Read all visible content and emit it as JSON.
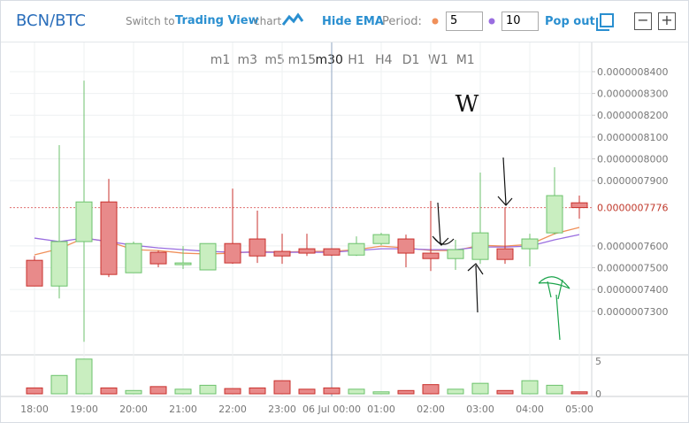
{
  "header": {
    "pair": "BCN/BTC",
    "switch_prefix": "Switch to",
    "switch_brand": "Trading View",
    "switch_suffix": "chart",
    "ema_toggle": "Hide EMA",
    "period_label": "Period:",
    "period_fast": "5",
    "period_slow": "10",
    "pop_out": "Pop out",
    "minus": "−",
    "plus": "+"
  },
  "timeframes": [
    "m1",
    "m3",
    "m5",
    "m15",
    "m30",
    "H1",
    "H4",
    "D1",
    "W1",
    "M1"
  ],
  "chart_data": {
    "type": "candlestick",
    "annotations": [
      "W"
    ],
    "categories": [
      "18:00",
      null,
      "19:00",
      null,
      "20:00",
      null,
      "21:00",
      null,
      "22:00",
      null,
      "23:00",
      null,
      "06 Jul 00:00",
      null,
      "01:00",
      null,
      "02:00",
      null,
      "03:00",
      null,
      "04:00",
      null,
      "05:00"
    ],
    "open": [
      7.534e-07,
      7.416e-07,
      7.62e-07,
      7.802e-07,
      7.477e-07,
      7.571e-07,
      7.514e-07,
      7.49e-07,
      7.611e-07,
      7.632e-07,
      7.575e-07,
      7.587e-07,
      7.587e-07,
      7.558e-07,
      7.611e-07,
      7.632e-07,
      7.567e-07,
      7.542e-07,
      7.538e-07,
      7.587e-07,
      7.587e-07,
      7.66e-07,
      7.798e-07
    ],
    "high": [
      7.554e-07,
      8.063e-07,
      8.359e-07,
      7.908e-07,
      7.62e-07,
      7.579e-07,
      7.599e-07,
      7.611e-07,
      7.863e-07,
      7.762e-07,
      7.656e-07,
      7.656e-07,
      7.587e-07,
      7.644e-07,
      7.66e-07,
      7.652e-07,
      7.807e-07,
      7.628e-07,
      7.937e-07,
      7.778e-07,
      7.656e-07,
      7.961e-07,
      7.831e-07
    ],
    "low": [
      7.416e-07,
      7.359e-07,
      7.16e-07,
      7.457e-07,
      7.477e-07,
      7.502e-07,
      7.494e-07,
      7.49e-07,
      7.518e-07,
      7.522e-07,
      7.518e-07,
      7.554e-07,
      7.554e-07,
      7.554e-07,
      7.603e-07,
      7.502e-07,
      7.485e-07,
      7.49e-07,
      7.518e-07,
      7.518e-07,
      7.506e-07,
      7.652e-07,
      7.725e-07
    ],
    "close": [
      7.416e-07,
      7.62e-07,
      7.802e-07,
      7.469e-07,
      7.611e-07,
      7.518e-07,
      7.522e-07,
      7.611e-07,
      7.522e-07,
      7.554e-07,
      7.554e-07,
      7.567e-07,
      7.558e-07,
      7.611e-07,
      7.652e-07,
      7.567e-07,
      7.542e-07,
      7.583e-07,
      7.66e-07,
      7.538e-07,
      7.632e-07,
      7.831e-07,
      7.776e-07
    ],
    "series": [
      {
        "name": "EMA 5",
        "color": "#f0905a",
        "values": [
          7.559e-07,
          7.587e-07,
          7.636e-07,
          7.62e-07,
          7.583e-07,
          7.579e-07,
          7.567e-07,
          7.563e-07,
          7.567e-07,
          7.575e-07,
          7.571e-07,
          7.575e-07,
          7.575e-07,
          7.583e-07,
          7.599e-07,
          7.591e-07,
          7.579e-07,
          7.579e-07,
          7.603e-07,
          7.599e-07,
          7.607e-07,
          7.656e-07,
          7.685e-07
        ]
      },
      {
        "name": "EMA 10",
        "color": "#9a6ee0",
        "values": [
          7.636e-07,
          7.62e-07,
          7.636e-07,
          7.62e-07,
          7.603e-07,
          7.591e-07,
          7.583e-07,
          7.575e-07,
          7.571e-07,
          7.571e-07,
          7.571e-07,
          7.571e-07,
          7.571e-07,
          7.579e-07,
          7.587e-07,
          7.587e-07,
          7.583e-07,
          7.583e-07,
          7.595e-07,
          7.595e-07,
          7.599e-07,
          7.628e-07,
          7.652e-07
        ]
      }
    ],
    "volume": [
      0.9,
      2.8,
      5.3,
      0.9,
      0.5,
      1.1,
      0.7,
      1.3,
      0.8,
      0.9,
      2.0,
      0.7,
      0.9,
      0.7,
      0.3,
      0.5,
      1.4,
      0.7,
      1.6,
      0.5,
      2.0,
      1.3,
      0.3
    ],
    "volume_ylim": [
      0,
      5
    ],
    "volume_ticks": [
      0,
      5
    ],
    "ylim": [
      7.1e-07,
      8.534e-07
    ],
    "yticks": [
      {
        "value": 7.3e-07,
        "label": "0.0000007300"
      },
      {
        "value": 7.4e-07,
        "label": "0.0000007400"
      },
      {
        "value": 7.5e-07,
        "label": "0.0000007500"
      },
      {
        "value": 7.6e-07,
        "label": "0.0000007600"
      },
      {
        "value": 7.9e-07,
        "label": "0.0000007900"
      },
      {
        "value": 8e-07,
        "label": "0.0000008000"
      },
      {
        "value": 8.1e-07,
        "label": "0.0000008100"
      },
      {
        "value": 8.2e-07,
        "label": "0.0000008200"
      },
      {
        "value": 8.3e-07,
        "label": "0.0000008300"
      },
      {
        "value": 8.4e-07,
        "label": "0.0000008400"
      }
    ],
    "last_price": {
      "value": 7.776e-07,
      "label": "0.0000007776"
    },
    "grid": true
  }
}
